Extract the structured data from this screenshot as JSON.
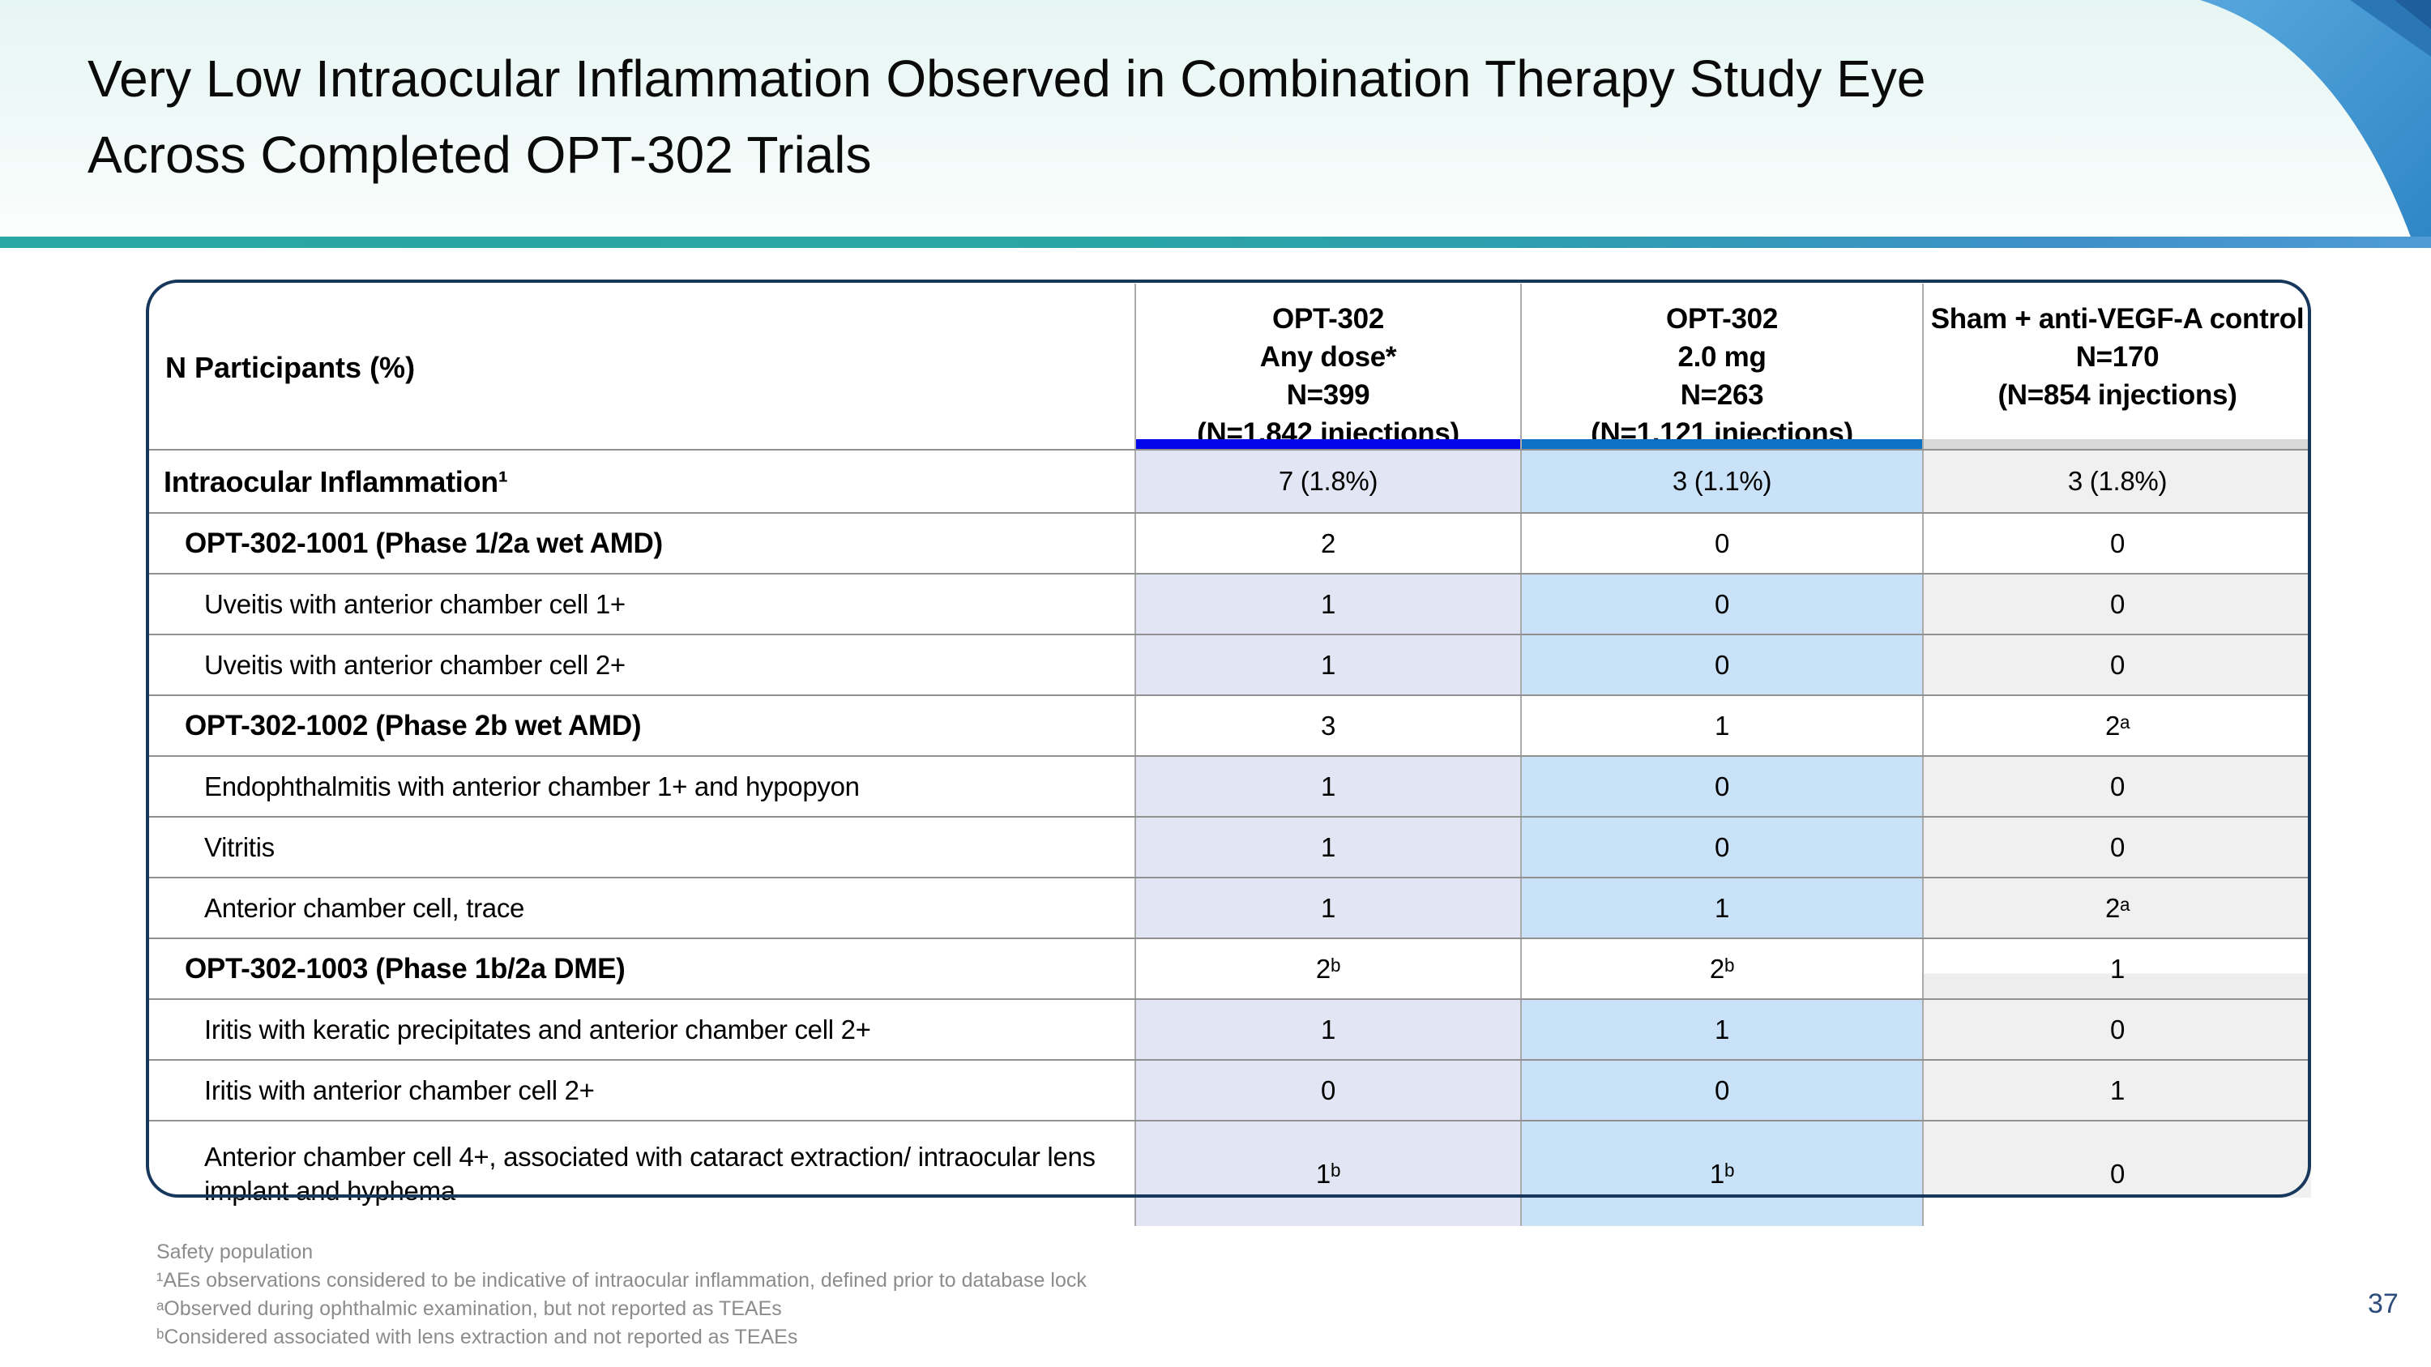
{
  "slide": {
    "title": "Very Low Intraocular Inflammation Observed in Combination Therapy Study Eye Across Completed OPT-302 Trials",
    "page_number": "37"
  },
  "table": {
    "row_label_header": "N Participants (%)",
    "columns": [
      {
        "lines": [
          "OPT-302",
          "Any dose*",
          "N=399",
          "(N=1,842 injections)"
        ],
        "bar_color": "#0205eb",
        "tint": "#e1e5f4"
      },
      {
        "lines": [
          "OPT-302",
          "2.0 mg",
          "N=263",
          "(N=1,121 injections)"
        ],
        "bar_color": "#0e72c4",
        "tint": "#c9e2f8"
      },
      {
        "lines": [
          "Sham + anti-VEGF-A control",
          "N=170",
          "(N=854 injections)"
        ],
        "bar_color": "#d9d9d9",
        "tint": "#f0f0f0"
      }
    ],
    "rows": [
      {
        "label": "Intraocular Inflammation¹",
        "style": "total",
        "values": [
          "7 (1.8%)",
          "3 (1.1%)",
          "3 (1.8%)"
        ]
      },
      {
        "label": "OPT-302-1001 (Phase 1/2a wet AMD)",
        "style": "group",
        "values": [
          "2",
          "0",
          "0"
        ]
      },
      {
        "label": "Uveitis with anterior chamber cell 1+",
        "style": "detail",
        "values": [
          "1",
          "0",
          "0"
        ]
      },
      {
        "label": "Uveitis with anterior chamber cell 2+",
        "style": "detail",
        "values": [
          "1",
          "0",
          "0"
        ]
      },
      {
        "label": "OPT-302-1002 (Phase 2b wet AMD)",
        "style": "group",
        "values": [
          "3",
          "1",
          "2ᵃ"
        ]
      },
      {
        "label": "Endophthalmitis with anterior chamber 1+ and hypopyon",
        "style": "detail",
        "values": [
          "1",
          "0",
          "0"
        ]
      },
      {
        "label": "Vitritis",
        "style": "detail",
        "values": [
          "1",
          "0",
          "0"
        ]
      },
      {
        "label": "Anterior chamber cell, trace",
        "style": "detail",
        "values": [
          "1",
          "1",
          "2ᵃ"
        ]
      },
      {
        "label": "OPT-302-1003 (Phase 1b/2a DME)",
        "style": "group",
        "values": [
          "2ᵇ",
          "2ᵇ",
          "1"
        ]
      },
      {
        "label": "Iritis with keratic precipitates and anterior chamber cell 2+",
        "style": "detail",
        "values": [
          "1",
          "1",
          "0"
        ]
      },
      {
        "label": "Iritis with anterior chamber cell 2+",
        "style": "detail",
        "values": [
          "0",
          "0",
          "1"
        ]
      },
      {
        "label": "Anterior chamber cell 4+, associated with cataract extraction/ intraocular lens implant and hyphema",
        "style": "detail",
        "tall": true,
        "values": [
          "1ᵇ",
          "1ᵇ",
          "0"
        ]
      }
    ]
  },
  "footnotes": [
    "Safety population",
    "¹AEs observations considered to be indicative of intraocular inflammation, defined prior to database lock",
    "ᵃObserved during ophthalmic examination, but not reported as TEAEs",
    "ᵇConsidered associated with lens extraction and not reported as TEAEs"
  ],
  "colors": {
    "accent_teal": "#29a7a2",
    "accent_blue": "#4f9bd6",
    "corner_blue": "#3f93d0",
    "corner_wedge_dark": "#1f5e9c",
    "table_border_navy": "#17375d",
    "page_number_navy": "#2c4c7c",
    "footnote_gray": "#8c8c8c"
  }
}
